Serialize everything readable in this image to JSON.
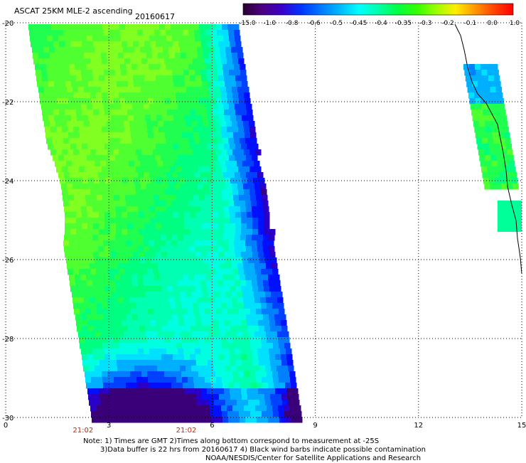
{
  "header": {
    "title": "ASCAT 25KM MLE-2 ascending",
    "date": "20160617"
  },
  "colorbar": {
    "labels": [
      "-15.0",
      "-1.0",
      "-0.8",
      "-0.6",
      "-0.5",
      "-0.45",
      "-0.4",
      "-0.35",
      "-0.3",
      "-0.2",
      "-0.1",
      "0.0",
      "1.0"
    ],
    "colors": [
      "#2a0030",
      "#4b0082",
      "#3a00c8",
      "#0033ff",
      "#0077ff",
      "#00b7ff",
      "#00ffff",
      "#00ffaa",
      "#00ff44",
      "#33ff00",
      "#99ff00",
      "#ffee00",
      "#ff9900",
      "#ff4400",
      "#ff0000"
    ]
  },
  "map": {
    "lon_range": [
      0,
      15
    ],
    "lat_range": [
      -30,
      -20
    ],
    "x_ticks": [
      "0",
      "3",
      "6",
      "9",
      "12",
      "15"
    ],
    "y_ticks": [
      "-20",
      "-22",
      "-24",
      "-26",
      "-28",
      "-30"
    ],
    "time_labels": [
      "21:02",
      "21:02"
    ],
    "time_label_lons": [
      2,
      5
    ],
    "grid_color": "#000000",
    "time_color": "#cc2200"
  },
  "notes": {
    "line1": "Note: 1) Times are GMT 2)Times along bottom correspond to measurement at -25S",
    "line2": "3)Data buffer is 22 hrs from 20160617 4) Black wind barbs indicate possible contamination",
    "line3": "NOAA/NESDIS/Center for Satellite Applications and Research"
  }
}
